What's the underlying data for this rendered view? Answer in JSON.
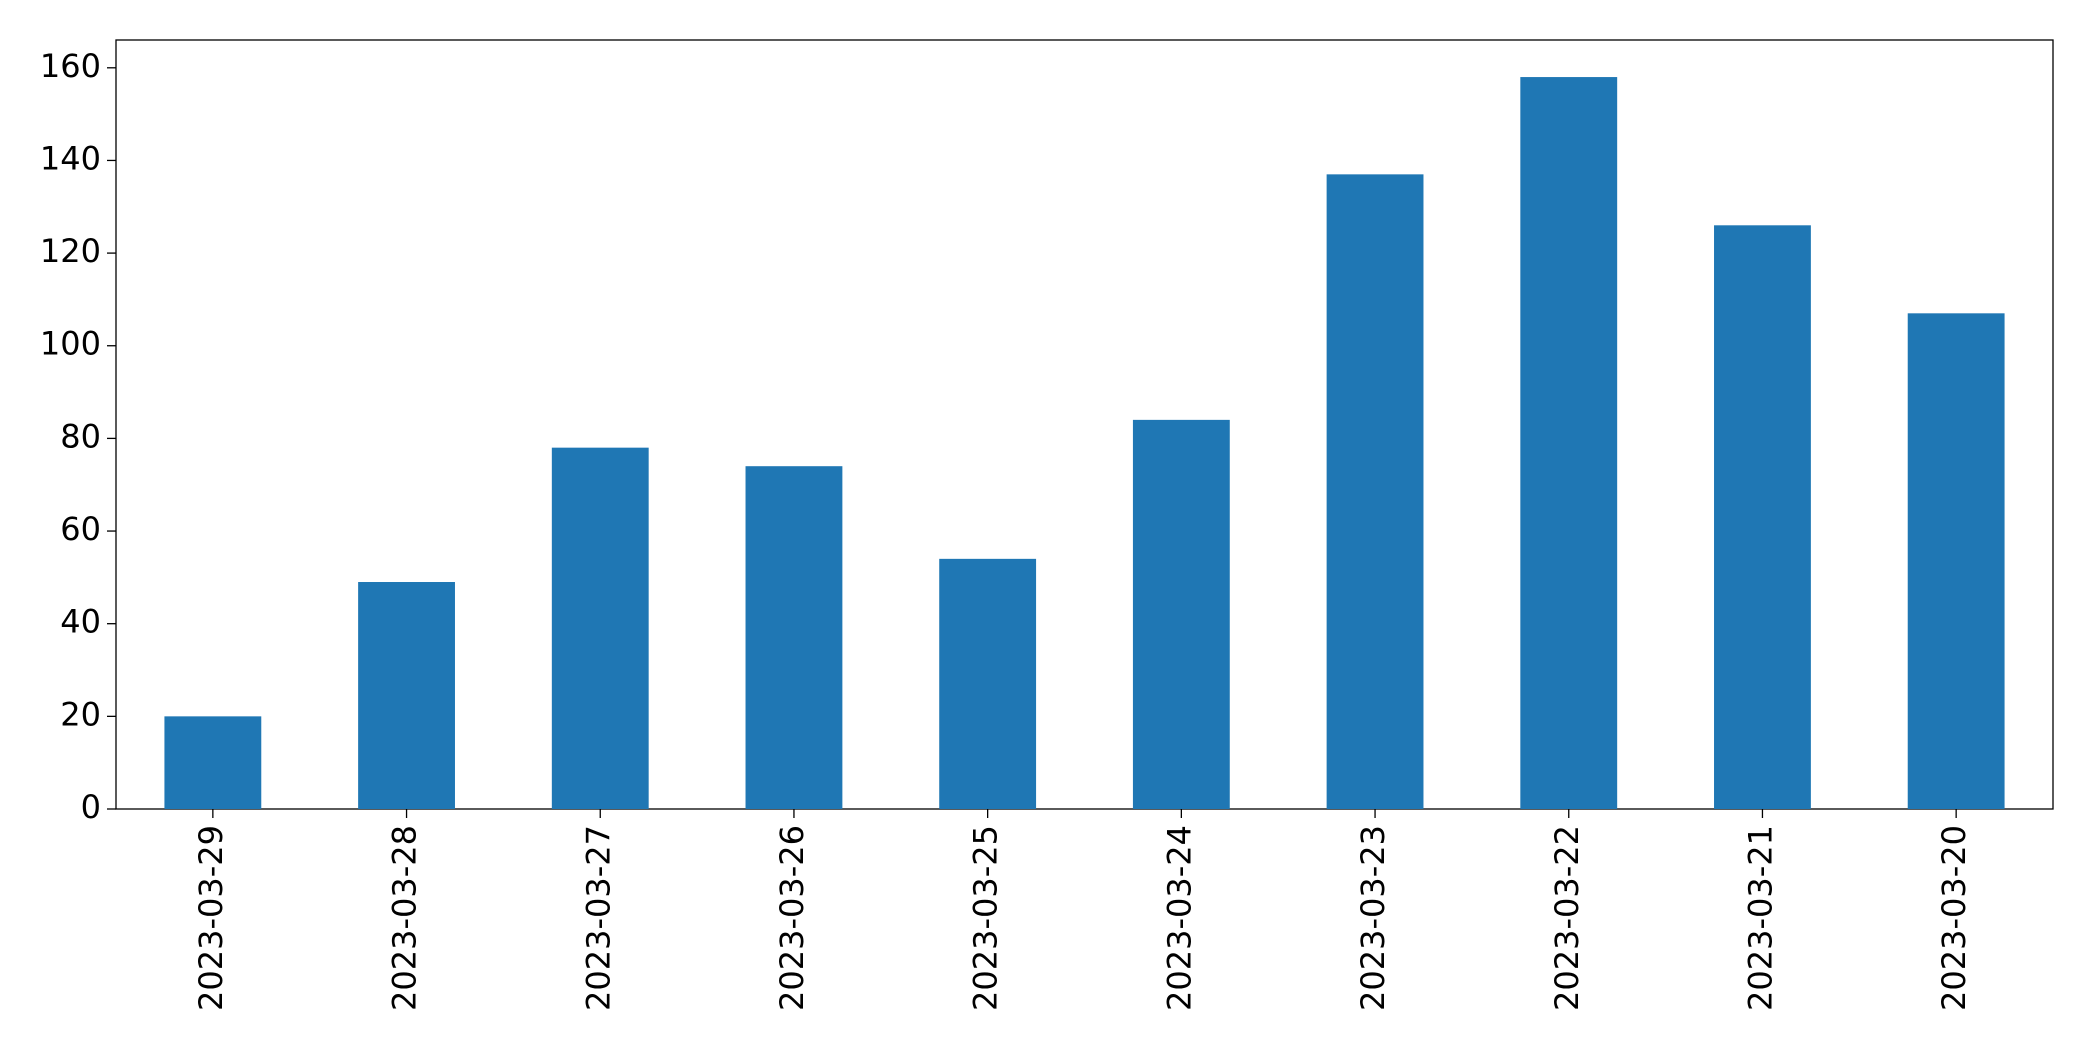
{
  "chart_data": {
    "type": "bar",
    "categories": [
      "2023-03-29",
      "2023-03-28",
      "2023-03-27",
      "2023-03-26",
      "2023-03-25",
      "2023-03-24",
      "2023-03-23",
      "2023-03-22",
      "2023-03-21",
      "2023-03-20"
    ],
    "values": [
      20,
      49,
      78,
      74,
      54,
      84,
      137,
      158,
      126,
      107
    ],
    "color": "#1f77b4",
    "ylim": [
      0,
      166
    ],
    "yticks": [
      0,
      20,
      40,
      60,
      80,
      100,
      120,
      140,
      160
    ],
    "grid": false
  }
}
